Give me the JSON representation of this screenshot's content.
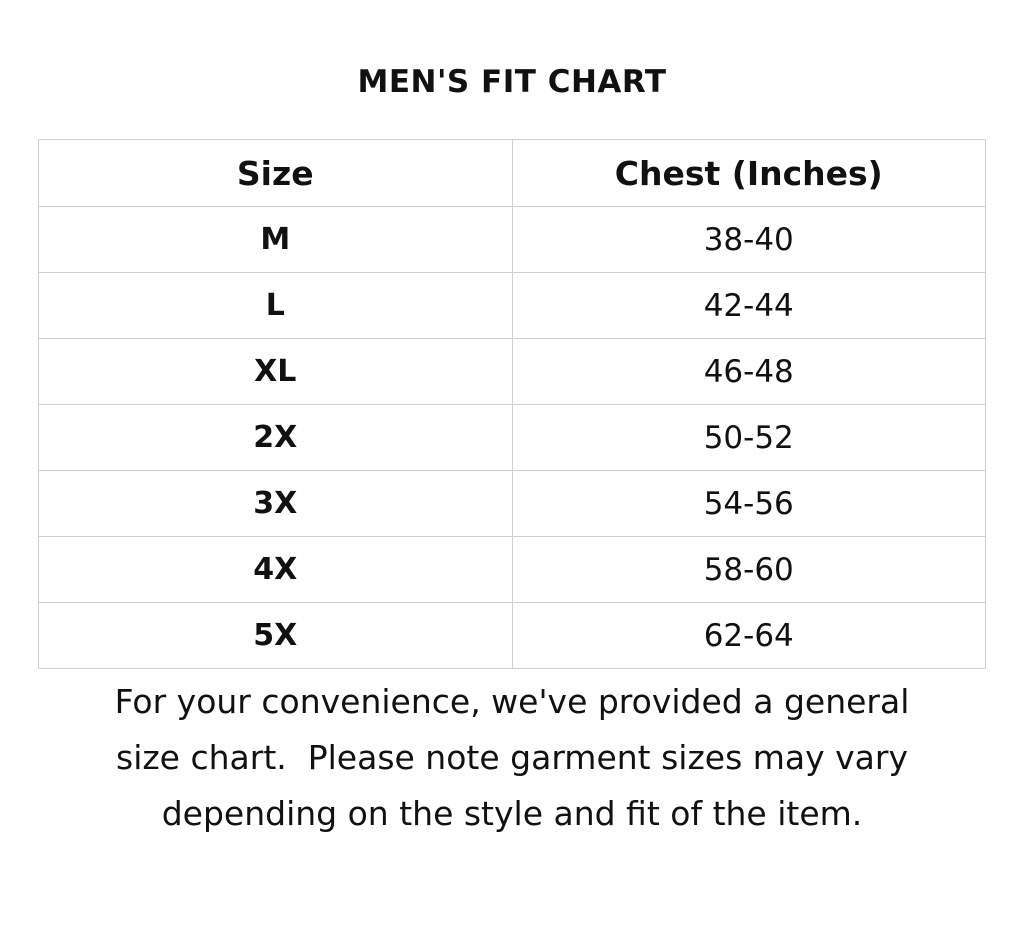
{
  "title": "MEN'S FIT CHART",
  "table": {
    "headers": [
      "Size",
      "Chest (Inches)"
    ],
    "rows": [
      {
        "size": "M",
        "chest": "38-40"
      },
      {
        "size": "L",
        "chest": "42-44"
      },
      {
        "size": "XL",
        "chest": "46-48"
      },
      {
        "size": "2X",
        "chest": "50-52"
      },
      {
        "size": "3X",
        "chest": "54-56"
      },
      {
        "size": "4X",
        "chest": "58-60"
      },
      {
        "size": "5X",
        "chest": "62-64"
      }
    ]
  },
  "note": {
    "lines": [
      "For your convenience, we've provided a general",
      "size chart.  Please note garment sizes may vary",
      "depending on the style and fit of the item."
    ]
  }
}
